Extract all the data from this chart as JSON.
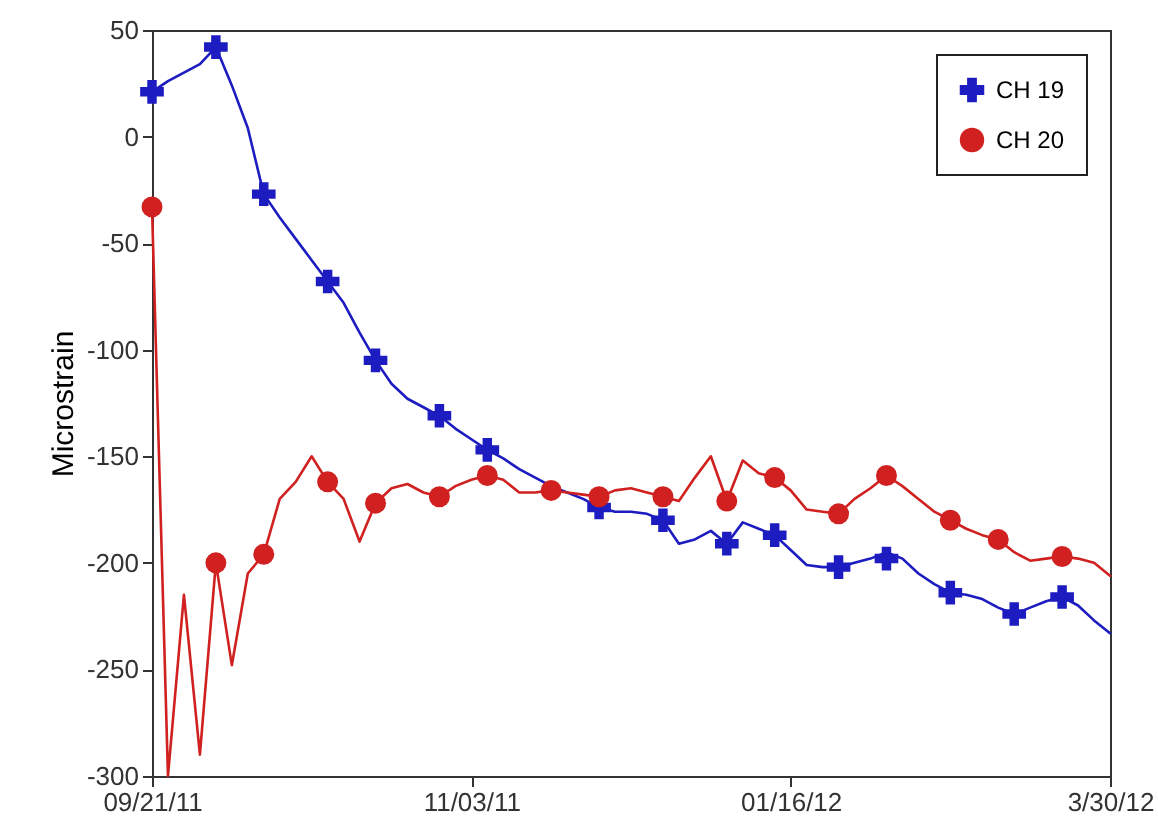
{
  "chart_data": {
    "type": "line",
    "ylabel": "Microstrain",
    "categories": [
      "09/21/11",
      null,
      null,
      null,
      null,
      null,
      null,
      null,
      null,
      null,
      null,
      null,
      null,
      null,
      null,
      null,
      null,
      null,
      null,
      null,
      "11/03/11",
      null,
      null,
      null,
      null,
      null,
      null,
      null,
      null,
      null,
      null,
      null,
      null,
      null,
      null,
      null,
      null,
      null,
      null,
      null,
      "01/16/12",
      null,
      null,
      null,
      null,
      null,
      null,
      null,
      null,
      null,
      null,
      null,
      null,
      null,
      null,
      null,
      null,
      null,
      null,
      null,
      "3/30/12"
    ],
    "ylim": [
      -300,
      50
    ],
    "yticks": [
      -300,
      -250,
      -200,
      -150,
      -100,
      -50,
      0,
      50
    ],
    "legend": "top right",
    "series": [
      {
        "color": "#1c1cc0",
        "line_style": "solid",
        "values": [
          21,
          26,
          30,
          34,
          42,
          24,
          4,
          -27,
          -38,
          -48,
          -58,
          -68,
          -78,
          -92,
          -105,
          -116,
          -123,
          -127,
          -131,
          -137,
          -142,
          -147,
          -151,
          -156,
          -160,
          -164,
          -167,
          -170,
          -174,
          -176,
          -176,
          -177,
          -180,
          -191,
          -189,
          -185,
          -191,
          -181,
          -184,
          -187,
          -194,
          -201,
          -202,
          -202,
          -200,
          -198,
          -195,
          -198,
          -205,
          -210,
          -214,
          -215,
          -217,
          -221,
          -224,
          -221,
          -218,
          -216,
          -220,
          -227,
          -233
        ]
      },
      {
        "color": "#d02020",
        "line_style": "solid",
        "values": [
          -33,
          -300,
          -215,
          -290,
          -200,
          -248,
          -205,
          -196,
          -170,
          -162,
          -150,
          -162,
          -170,
          -190,
          -172,
          -165,
          -163,
          -167,
          -169,
          -164,
          -161,
          -159,
          -161,
          -167,
          -167,
          -166,
          -167,
          -168,
          -169,
          -166,
          -165,
          -167,
          -169,
          -171,
          -160,
          -150,
          -171,
          -152,
          -158,
          -160,
          -166,
          -175,
          -176,
          -177,
          -170,
          -165,
          -159,
          -164,
          -170,
          -176,
          -180,
          -184,
          -187,
          -189,
          -195,
          -199,
          -198,
          -197,
          -198,
          -200,
          -206
        ]
      },
      {
        "type": "scatter",
        "name": "CH 19",
        "color": "#1c1cc0",
        "marker": "cross",
        "values": [
          21,
          null,
          null,
          null,
          42,
          null,
          null,
          -27,
          null,
          null,
          null,
          -68,
          null,
          null,
          -105,
          null,
          null,
          null,
          -131,
          null,
          null,
          -147,
          null,
          null,
          null,
          null,
          null,
          null,
          -174,
          null,
          null,
          null,
          -180,
          null,
          null,
          null,
          -191,
          null,
          null,
          -187,
          null,
          null,
          null,
          -202,
          null,
          null,
          -198,
          null,
          null,
          null,
          -214,
          null,
          null,
          null,
          -224,
          null,
          null,
          -216,
          null,
          null,
          null
        ]
      },
      {
        "type": "scatter",
        "name": "CH 20",
        "color": "#d02020",
        "marker": "circle",
        "values": [
          -33,
          null,
          null,
          null,
          -200,
          null,
          null,
          -196,
          null,
          null,
          null,
          -162,
          null,
          null,
          -172,
          null,
          null,
          null,
          -169,
          null,
          null,
          -159,
          null,
          null,
          null,
          -166,
          null,
          null,
          -169,
          null,
          null,
          null,
          -169,
          null,
          null,
          null,
          -171,
          null,
          null,
          -160,
          null,
          null,
          null,
          -177,
          null,
          null,
          -159,
          null,
          null,
          null,
          -180,
          null,
          null,
          -189,
          null,
          null,
          null,
          -197,
          null,
          null,
          null
        ]
      }
    ]
  }
}
